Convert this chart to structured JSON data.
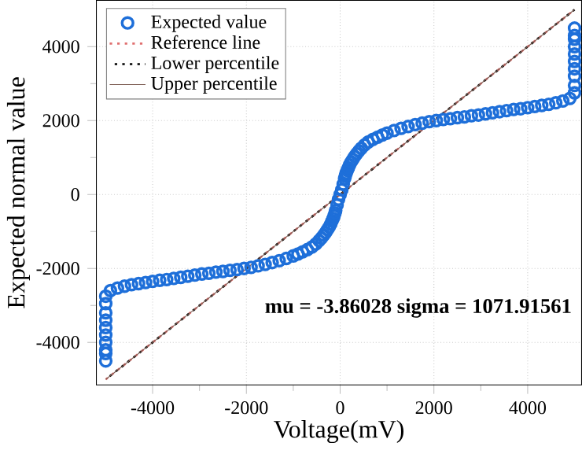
{
  "chart_data": {
    "type": "scatter",
    "xlabel": "Voltage(mV)",
    "ylabel": "Expected normal value",
    "xlim": [
      -5200,
      5150
    ],
    "ylim": [
      -5150,
      5250
    ],
    "xticks": [
      -4000,
      -2000,
      0,
      2000,
      4000
    ],
    "yticks": [
      -4000,
      -2000,
      0,
      2000,
      4000
    ],
    "grid": true,
    "legend": "top left",
    "annotations": [
      "mu = -3.86028  sigma = 1071.91561"
    ],
    "series": [
      {
        "name": "Expected value",
        "marker": "circle",
        "color": "#1e6fd9",
        "x": [
          -5000,
          -5000,
          -5000,
          -5000,
          -5000,
          -5000,
          -5000,
          -5000,
          -5000,
          -5000,
          -4900,
          -4750,
          -4600,
          -4450,
          -4300,
          -4150,
          -4000,
          -3850,
          -3700,
          -3550,
          -3400,
          -3250,
          -3100,
          -2950,
          -2800,
          -2650,
          -2500,
          -2350,
          -2200,
          -2050,
          -1900,
          -1750,
          -1600,
          -1450,
          -1300,
          -1150,
          -1000,
          -900,
          -800,
          -700,
          -600,
          -520,
          -450,
          -400,
          -350,
          -310,
          -270,
          -235,
          -200,
          -175,
          -150,
          -130,
          -110,
          -95,
          -65,
          -35,
          0,
          35,
          65,
          95,
          110,
          130,
          150,
          175,
          200,
          235,
          270,
          310,
          350,
          400,
          450,
          520,
          600,
          700,
          800,
          900,
          1000,
          1150,
          1300,
          1450,
          1600,
          1750,
          1900,
          2050,
          2200,
          2350,
          2500,
          2650,
          2800,
          2950,
          3100,
          3250,
          3400,
          3550,
          3700,
          3850,
          4000,
          4150,
          4300,
          4450,
          4600,
          4750,
          4900,
          5000,
          5000,
          5000,
          5000,
          5000,
          5000,
          5000,
          5000,
          5000,
          5000
        ],
        "values": [
          -4500,
          -4300,
          -4200,
          -4000,
          -3800,
          -3600,
          -3400,
          -3200,
          -2950,
          -2750,
          -2600,
          -2530,
          -2480,
          -2440,
          -2410,
          -2380,
          -2350,
          -2320,
          -2300,
          -2270,
          -2240,
          -2210,
          -2180,
          -2150,
          -2130,
          -2100,
          -2080,
          -2050,
          -2030,
          -2000,
          -1970,
          -1930,
          -1890,
          -1840,
          -1790,
          -1730,
          -1660,
          -1610,
          -1550,
          -1490,
          -1420,
          -1340,
          -1250,
          -1180,
          -1100,
          -1030,
          -950,
          -880,
          -800,
          -720,
          -650,
          -580,
          -500,
          -430,
          -280,
          -130,
          0,
          130,
          280,
          430,
          500,
          580,
          650,
          720,
          800,
          880,
          950,
          1030,
          1100,
          1180,
          1250,
          1340,
          1420,
          1490,
          1550,
          1610,
          1660,
          1730,
          1790,
          1840,
          1890,
          1930,
          1970,
          2000,
          2030,
          2050,
          2080,
          2100,
          2130,
          2150,
          2180,
          2210,
          2240,
          2270,
          2300,
          2320,
          2350,
          2380,
          2410,
          2440,
          2480,
          2530,
          2600,
          2750,
          2950,
          3200,
          3400,
          3600,
          3800,
          4000,
          4200,
          4300,
          4500
        ]
      },
      {
        "name": "Reference line",
        "type": "line",
        "marker": "none",
        "line_style": "dotted",
        "color": "#e07070",
        "x": [
          -5000,
          5000
        ],
        "values": [
          -5000,
          5000
        ]
      },
      {
        "name": "Lower percentile",
        "type": "line",
        "marker": "none",
        "line_style": "dotted",
        "color": "#000000",
        "x": [
          -5000,
          5000
        ],
        "values": [
          -5000,
          5000
        ]
      },
      {
        "name": "Upper percentile",
        "type": "line",
        "marker": "none",
        "line_style": "solid",
        "color": "#7a5a50",
        "x": [
          -5000,
          5000
        ],
        "values": [
          -5000,
          5000
        ]
      }
    ]
  }
}
